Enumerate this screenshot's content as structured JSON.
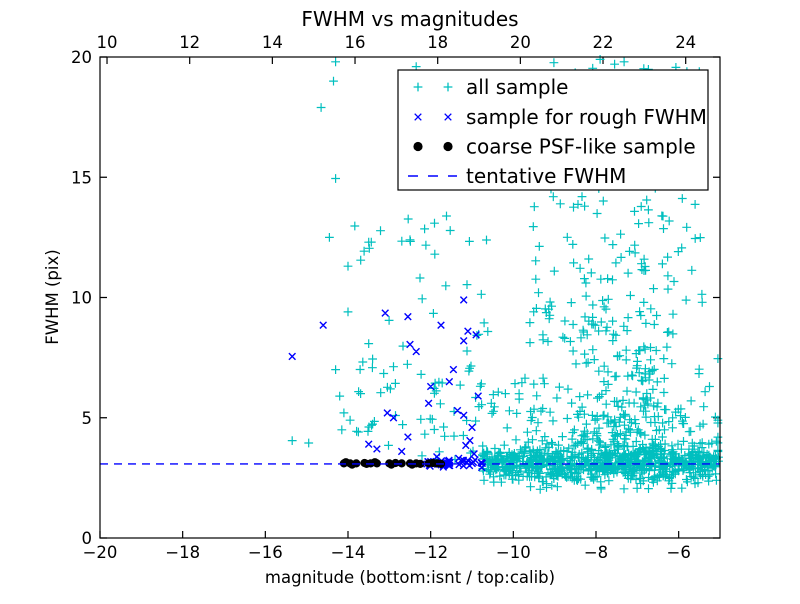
{
  "title": "FWHM vs magnitudes",
  "xlabel": "magnitude (bottom:isnt / top:calib)",
  "ylabel": "FWHM (pix)",
  "legend": {
    "items": [
      {
        "label": "all sample",
        "marker": "plus",
        "color": "#00bfbf"
      },
      {
        "label": "sample for rough FWHM",
        "marker": "cross",
        "color": "#0000ff"
      },
      {
        "label": "coarse PSF-like sample",
        "marker": "dot",
        "color": "#000000"
      },
      {
        "label": "tentative FWHM",
        "marker": "dash",
        "color": "#0000ff"
      }
    ]
  },
  "chart_data": {
    "type": "scatter",
    "title": "FWHM vs magnitudes",
    "xlabel": "magnitude (bottom:isnt / top:calib)",
    "ylabel": "FWHM (pix)",
    "xlim": [
      -20,
      -5
    ],
    "xlim_top": [
      9.83,
      24.83
    ],
    "ylim": [
      0,
      20
    ],
    "x_ticks": [
      -20,
      -18,
      -16,
      -14,
      -12,
      -10,
      -8,
      -6
    ],
    "x_ticks_top": [
      10,
      12,
      14,
      16,
      18,
      20,
      22,
      24
    ],
    "y_ticks": [
      0,
      5,
      10,
      15,
      20
    ],
    "grid": false,
    "legend_position": "upper center-right",
    "tentative_fwhm": 3.08,
    "series": [
      {
        "name": "all sample",
        "marker": "plus",
        "color": "#00bfbf",
        "clusters": [
          {
            "kind": "line",
            "n": 700,
            "x_min": -10.75,
            "x_max": -5.02,
            "y_center": 3.1,
            "y_sigma": 0.32,
            "y_lo": 2.0,
            "y_hi": 4.8
          },
          {
            "kind": "plume",
            "n": 330,
            "x_center": -7.4,
            "x_sigma": 1.05,
            "x_min": -10.4,
            "x_max": -5.05,
            "y_base": 3.4,
            "y_scale": 2.2,
            "y_max": 20
          },
          {
            "kind": "box",
            "n": 95,
            "x_min": -9.7,
            "x_max": -5.3,
            "y_min": 8,
            "y_max": 15
          },
          {
            "kind": "box",
            "n": 70,
            "x_min": -9.4,
            "x_max": -5.5,
            "y_min": 15,
            "y_max": 20
          },
          {
            "kind": "box",
            "n": 60,
            "x_min": -13.9,
            "x_max": -10.5,
            "y_min": 3.2,
            "y_max": 7.5
          },
          {
            "kind": "box",
            "n": 30,
            "x_min": -13.9,
            "x_max": -10.6,
            "y_min": 7.5,
            "y_max": 13.5
          },
          {
            "kind": "box",
            "n": 60,
            "x_min": -9.7,
            "x_max": -5.2,
            "y_min": 2.0,
            "y_max": 3.0
          },
          {
            "kind": "box",
            "n": 26,
            "x_min": -10.6,
            "x_max": -9.4,
            "y_min": 3.3,
            "y_max": 6.8
          }
        ],
        "points": [
          [
            -14.3,
            19.8
          ],
          [
            -14.35,
            19.0
          ],
          [
            -14.65,
            17.9
          ],
          [
            -14.3,
            14.95
          ],
          [
            -14.45,
            12.5
          ],
          [
            -14.0,
            11.3
          ],
          [
            -14.3,
            7.0
          ],
          [
            -15.35,
            4.05
          ],
          [
            -14.95,
            3.95
          ],
          [
            -14.2,
            5.9
          ],
          [
            -14.1,
            5.2
          ],
          [
            -13.95,
            4.9
          ],
          [
            -14.15,
            4.5
          ],
          [
            -12.35,
            19.6
          ],
          [
            -12.2,
            18.8
          ],
          [
            -7.9,
            19.9
          ],
          [
            -7.55,
            19.7
          ],
          [
            -7.7,
            19.2
          ],
          [
            -6.9,
            18.6
          ],
          [
            -13.5,
            12.3
          ],
          [
            -12.5,
            12.4
          ],
          [
            -11.9,
            11.8
          ],
          [
            -14.0,
            9.4
          ]
        ]
      },
      {
        "name": "sample for rough FWHM",
        "marker": "cross",
        "color": "#0000ff",
        "clusters": [
          {
            "kind": "line",
            "n": 48,
            "x_min": -12.1,
            "x_max": -10.7,
            "y_center": 3.12,
            "y_sigma": 0.1,
            "y_lo": 2.85,
            "y_hi": 3.45
          }
        ],
        "points": [
          [
            -15.35,
            7.55
          ],
          [
            -14.6,
            8.85
          ],
          [
            -13.1,
            9.35
          ],
          [
            -12.55,
            9.2
          ],
          [
            -11.2,
            9.9
          ],
          [
            -11.75,
            8.85
          ],
          [
            -12.5,
            8.05
          ],
          [
            -12.35,
            7.75
          ],
          [
            -11.1,
            8.6
          ],
          [
            -10.9,
            8.45
          ],
          [
            -12.0,
            6.3
          ],
          [
            -11.55,
            6.5
          ],
          [
            -13.05,
            5.2
          ],
          [
            -12.9,
            5.0
          ],
          [
            -11.35,
            5.3
          ],
          [
            -11.2,
            5.1
          ],
          [
            -11.0,
            4.6
          ],
          [
            -12.55,
            4.2
          ],
          [
            -13.5,
            3.9
          ],
          [
            -11.15,
            3.85
          ],
          [
            -11.05,
            4.05
          ],
          [
            -12.7,
            3.6
          ],
          [
            -10.85,
            5.9
          ],
          [
            -11.45,
            7.0
          ],
          [
            -12.05,
            5.6
          ],
          [
            -10.95,
            3.5
          ],
          [
            -13.3,
            3.7
          ],
          [
            -11.2,
            8.2
          ]
        ]
      },
      {
        "name": "coarse PSF-like sample",
        "marker": "dot",
        "color": "#000000",
        "clusters": [],
        "points": [
          [
            -14.1,
            3.1
          ],
          [
            -14.05,
            3.15
          ],
          [
            -13.95,
            3.1
          ],
          [
            -13.9,
            3.05
          ],
          [
            -13.8,
            3.1
          ],
          [
            -13.6,
            3.12
          ],
          [
            -13.55,
            3.08
          ],
          [
            -13.45,
            3.1
          ],
          [
            -13.35,
            3.15
          ],
          [
            -13.3,
            3.1
          ],
          [
            -13.0,
            3.1
          ],
          [
            -12.95,
            3.05
          ],
          [
            -12.85,
            3.12
          ],
          [
            -12.7,
            3.1
          ],
          [
            -12.5,
            3.1
          ],
          [
            -12.45,
            3.05
          ],
          [
            -12.35,
            3.1
          ],
          [
            -12.25,
            3.08
          ],
          [
            -12.05,
            3.1
          ],
          [
            -11.95,
            3.12
          ],
          [
            -11.85,
            3.1
          ],
          [
            -11.75,
            3.08
          ]
        ]
      }
    ]
  }
}
